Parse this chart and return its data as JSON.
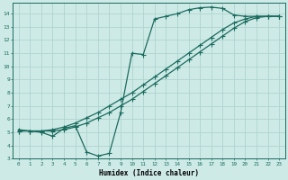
{
  "xlabel": "Humidex (Indice chaleur)",
  "bg_color": "#ceeae7",
  "grid_color": "#aed4d0",
  "line_color": "#1a6b5e",
  "xlim": [
    -0.5,
    23.5
  ],
  "ylim": [
    3,
    14.8
  ],
  "xticks": [
    0,
    1,
    2,
    3,
    4,
    5,
    6,
    7,
    8,
    9,
    10,
    11,
    12,
    13,
    14,
    15,
    16,
    17,
    18,
    19,
    20,
    21,
    22,
    23
  ],
  "yticks": [
    3,
    4,
    5,
    6,
    7,
    8,
    9,
    10,
    11,
    12,
    13,
    14
  ],
  "curve1_x": [
    0,
    1,
    2,
    3,
    4,
    5,
    6,
    7,
    8,
    9,
    10,
    11,
    12,
    13,
    14,
    15,
    16,
    17,
    18,
    19,
    20,
    21,
    22,
    23
  ],
  "curve1_y": [
    5.2,
    5.1,
    5.0,
    4.7,
    5.3,
    5.5,
    3.5,
    3.2,
    3.4,
    6.5,
    11.0,
    10.9,
    13.6,
    13.8,
    14.0,
    14.3,
    14.45,
    14.5,
    14.4,
    13.9,
    13.8,
    13.8,
    13.8,
    13.8
  ],
  "curve2_x": [
    0,
    1,
    2,
    3,
    4,
    5,
    6,
    7,
    8,
    9,
    10,
    11,
    12,
    13,
    14,
    15,
    16,
    17,
    18,
    19,
    20,
    21,
    22,
    23
  ],
  "curve2_y": [
    5.1,
    5.1,
    5.1,
    5.1,
    5.2,
    5.4,
    5.7,
    6.1,
    6.5,
    7.0,
    7.5,
    8.1,
    8.7,
    9.3,
    9.9,
    10.5,
    11.1,
    11.7,
    12.3,
    12.9,
    13.4,
    13.7,
    13.8,
    13.8
  ],
  "curve3_x": [
    0,
    1,
    2,
    3,
    4,
    5,
    6,
    7,
    8,
    9,
    10,
    11,
    12,
    13,
    14,
    15,
    16,
    17,
    18,
    19,
    20,
    21,
    22,
    23
  ],
  "curve3_y": [
    5.1,
    5.1,
    5.1,
    5.2,
    5.4,
    5.7,
    6.1,
    6.5,
    7.0,
    7.5,
    8.0,
    8.6,
    9.2,
    9.8,
    10.4,
    11.0,
    11.6,
    12.2,
    12.8,
    13.3,
    13.6,
    13.8,
    13.8,
    13.8
  ]
}
